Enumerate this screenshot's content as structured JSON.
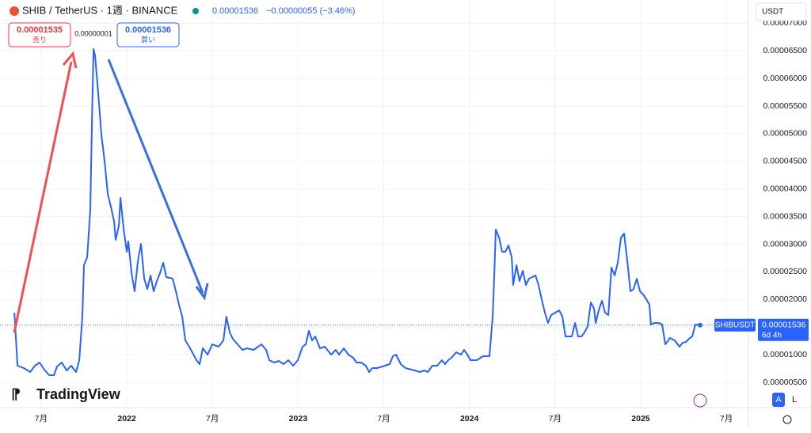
{
  "chart_data": {
    "type": "line",
    "title": "SHIB / TetherUS · 1週 · BINANCE",
    "last_price": "0.00001536",
    "change": "−0.00000055 (−3.46%)",
    "sell_price": "0.00001535",
    "sell_label": "売り",
    "spread": "0.00000001",
    "buy_price": "0.00001536",
    "buy_label": "買い",
    "currency": "USDT",
    "last_price_tag": {
      "name": "SHIBUSDT",
      "price": "0.00001536",
      "countdown": "6d 4h"
    },
    "logo": "TradingView",
    "scale_buttons": [
      "A",
      "L"
    ],
    "grid": true,
    "xlim": [
      2021.26,
      2025.629
    ],
    "ylim": [
      4.15e-07,
      7.42e-05
    ],
    "xticks": [
      {
        "value": 2021.5,
        "label": "7月"
      },
      2022,
      {
        "value": 2022.5,
        "label": "7月"
      },
      2023,
      {
        "value": 2023.5,
        "label": "7月"
      },
      2024,
      {
        "value": 2024.5,
        "label": "7月"
      },
      2025,
      {
        "value": 2025.5,
        "label": "7月"
      }
    ],
    "yticks": [
      {
        "value": 5e-06,
        "label": "0.00000500"
      },
      {
        "value": 1e-05,
        "label": "0.00001000"
      },
      {
        "value": 1.5e-05,
        "label": "0.00001500"
      },
      {
        "value": 2e-05,
        "label": "0.00002000"
      },
      {
        "value": 2.5e-05,
        "label": "0.00002500"
      },
      {
        "value": 3e-05,
        "label": "0.00003000"
      },
      {
        "value": 3.5e-05,
        "label": "0.00003500"
      },
      {
        "value": 4e-05,
        "label": "0.00004000"
      },
      {
        "value": 4.5e-05,
        "label": "0.00004500"
      },
      {
        "value": 5e-05,
        "label": "0.00005000"
      },
      {
        "value": 5.5e-05,
        "label": "0.00005500"
      },
      {
        "value": 6e-05,
        "label": "0.00006000"
      },
      {
        "value": 6.5e-05,
        "label": "0.00006500"
      },
      {
        "value": 7e-05,
        "label": "0.00007000"
      }
    ],
    "x": [
      2021.344,
      2021.362,
      2021.399,
      2021.436,
      2021.464,
      2021.491,
      2021.519,
      2021.547,
      2021.575,
      2021.593,
      2021.621,
      2021.649,
      2021.676,
      2021.704,
      2021.723,
      2021.741,
      2021.75,
      2021.769,
      2021.787,
      2021.797,
      2021.806,
      2021.815,
      2021.834,
      2021.852,
      2021.871,
      2021.889,
      2021.908,
      2021.926,
      2021.935,
      2021.954,
      2021.963,
      2021.982,
      2022.0,
      2022.009,
      2022.028,
      2022.046,
      2022.065,
      2022.083,
      2022.102,
      2022.12,
      2022.139,
      2022.157,
      2022.176,
      2022.194,
      2022.213,
      2022.231,
      2022.268,
      2022.287,
      2022.305,
      2022.324,
      2022.342,
      2022.37,
      2022.407,
      2022.425,
      2022.444,
      2022.472,
      2022.499,
      2022.536,
      2022.564,
      2022.582,
      2022.601,
      2022.619,
      2022.647,
      2022.675,
      2022.703,
      2022.74,
      2022.767,
      2022.786,
      2022.814,
      2022.832,
      2022.86,
      2022.888,
      2022.915,
      2022.943,
      2022.971,
      2022.999,
      2023.026,
      2023.045,
      2023.063,
      2023.082,
      2023.1,
      2023.128,
      2023.156,
      2023.193,
      2023.22,
      2023.239,
      2023.267,
      2023.294,
      2023.322,
      2023.341,
      2023.368,
      2023.396,
      2023.415,
      2023.433,
      2023.461,
      2023.507,
      2023.535,
      2023.553,
      2023.572,
      2023.6,
      2023.627,
      2023.683,
      2023.71,
      2023.738,
      2023.757,
      2023.784,
      2023.812,
      2023.84,
      2023.858,
      2023.877,
      2023.895,
      2023.923,
      2023.951,
      2023.969,
      2023.988,
      2024.006,
      2024.043,
      2024.08,
      2024.117,
      2024.136,
      2024.145,
      2024.154,
      2024.173,
      2024.191,
      2024.21,
      2024.228,
      2024.247,
      2024.256,
      2024.275,
      2024.293,
      2024.312,
      2024.33,
      2024.348,
      2024.386,
      2024.404,
      2024.422,
      2024.441,
      2024.459,
      2024.478,
      2024.524,
      2024.543,
      2024.561,
      2024.598,
      2024.617,
      2024.635,
      2024.654,
      2024.672,
      2024.691,
      2024.709,
      2024.728,
      2024.737,
      2024.755,
      2024.774,
      2024.792,
      2024.811,
      2024.829,
      2024.848,
      2024.866,
      2024.885,
      2024.903,
      2024.922,
      2024.94,
      2024.959,
      2024.977,
      2024.996,
      2025.014,
      2025.033,
      2025.051,
      2025.06,
      2025.079,
      2025.107,
      2025.125,
      2025.144,
      2025.171,
      2025.199,
      2025.227,
      2025.245,
      2025.264,
      2025.282,
      2025.301,
      2025.319,
      2025.347
    ],
    "series": [
      {
        "name": "SHIBUSDT",
        "color": "#2962ff",
        "values": [
          1.761e-05,
          8.01e-06,
          7.58e-06,
          6.86e-06,
          8.01e-06,
          8.58e-06,
          7.29e-06,
          6.29e-06,
          6.29e-06,
          7.87e-06,
          8.58e-06,
          7.15e-06,
          8.01e-06,
          6.86e-06,
          9.01e-06,
          1.689e-05,
          2.62e-05,
          2.764e-05,
          3.623e-05,
          5.271e-05,
          6.532e-05,
          6.417e-05,
          5.701e-05,
          4.984e-05,
          4.483e-05,
          3.91e-05,
          3.666e-05,
          3.408e-05,
          3.079e-05,
          3.337e-05,
          3.838e-05,
          3.265e-05,
          2.864e-05,
          3.05e-05,
          2.477e-05,
          2.148e-05,
          2.692e-05,
          3.007e-05,
          2.377e-05,
          2.191e-05,
          2.434e-05,
          2.148e-05,
          2.334e-05,
          2.477e-05,
          2.663e-05,
          2.405e-05,
          2.377e-05,
          2.148e-05,
          1.904e-05,
          1.689e-05,
          1.259e-05,
          1.116e-05,
          9.01e-06,
          8.3e-06,
          1.116e-05,
          1.001e-05,
          1.188e-05,
          1.145e-05,
          1.259e-05,
          1.689e-05,
          1.403e-05,
          1.288e-05,
          1.188e-05,
          1.087e-05,
          1.116e-05,
          1.087e-05,
          1.145e-05,
          1.188e-05,
          1.087e-05,
          9.01e-06,
          8.58e-06,
          8.87e-06,
          8.3e-06,
          9.01e-06,
          8.01e-06,
          9.01e-06,
          1.145e-05,
          1.188e-05,
          1.431e-05,
          1.259e-05,
          1.331e-05,
          1.116e-05,
          1.145e-05,
          1.001e-05,
          1.087e-05,
          1.001e-05,
          1.116e-05,
          1.001e-05,
          9.44e-06,
          8.58e-06,
          8.58e-06,
          8.01e-06,
          6.86e-06,
          7.58e-06,
          7.58e-06,
          8.01e-06,
          8.3e-06,
          9.73e-06,
          1.001e-05,
          8.3e-06,
          7.58e-06,
          7.15e-06,
          6.86e-06,
          7.15e-06,
          6.86e-06,
          8.01e-06,
          8.01e-06,
          9.01e-06,
          8.3e-06,
          9.01e-06,
          9.44e-06,
          1.044e-05,
          1.001e-05,
          1.087e-05,
          1.001e-05,
          9.01e-06,
          9.01e-06,
          9.73e-06,
          9.73e-06,
          1.689e-05,
          2.405e-05,
          3.265e-05,
          3.122e-05,
          2.864e-05,
          2.864e-05,
          2.979e-05,
          2.764e-05,
          2.262e-05,
          2.62e-05,
          2.334e-05,
          2.52e-05,
          2.262e-05,
          2.377e-05,
          2.434e-05,
          2.262e-05,
          2.004e-05,
          1.761e-05,
          1.575e-05,
          1.718e-05,
          1.804e-05,
          1.689e-05,
          1.331e-05,
          1.331e-05,
          1.575e-05,
          1.331e-05,
          1.331e-05,
          1.403e-05,
          1.517e-05,
          1.947e-05,
          1.832e-05,
          1.575e-05,
          1.804e-05,
          1.976e-05,
          1.761e-05,
          1.718e-05,
          2.577e-05,
          2.434e-05,
          2.663e-05,
          3.122e-05,
          3.193e-05,
          2.692e-05,
          2.148e-05,
          2.191e-05,
          2.377e-05,
          2.148e-05,
          2.09e-05,
          2.004e-05,
          1.904e-05,
          1.546e-05,
          1.575e-05,
          1.575e-05,
          1.546e-05,
          1.188e-05,
          1.302e-05,
          1.259e-05,
          1.145e-05,
          1.216e-05,
          1.231e-05,
          1.288e-05,
          1.331e-05,
          1.546e-05,
          1.536e-05
        ]
      }
    ]
  }
}
